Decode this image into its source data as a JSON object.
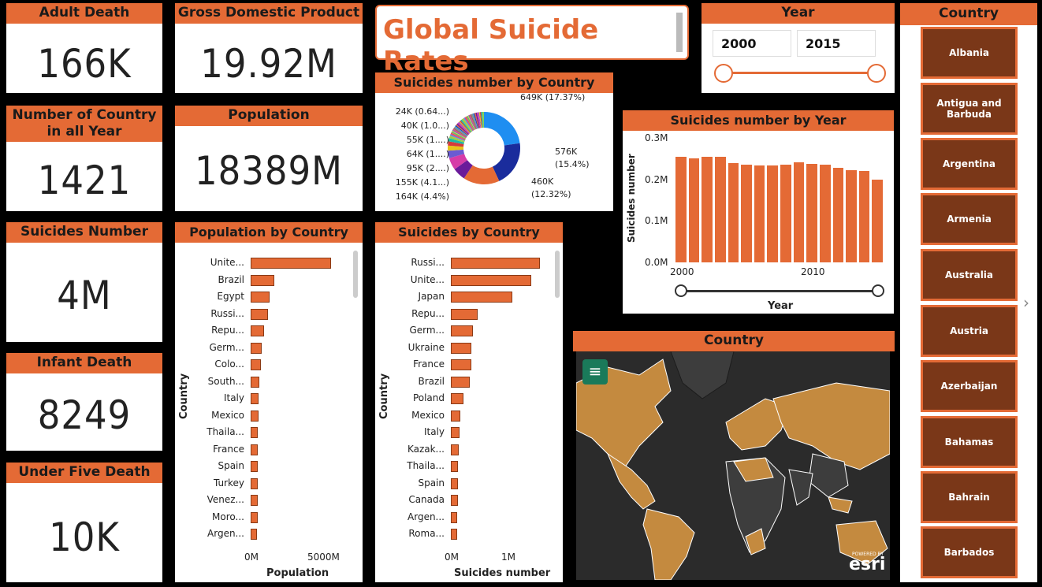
{
  "title": "Global Suicide Rates",
  "kpis": {
    "adult_death": {
      "label": "Adult Death",
      "value": "166K"
    },
    "gdp": {
      "label": "Gross Domestic Product",
      "value": "19.92M"
    },
    "countries": {
      "label": "Number of Country in all Year",
      "value": "1421"
    },
    "population": {
      "label": "Population",
      "value": "18389M"
    },
    "suicides": {
      "label": "Suicides Number",
      "value": "4M"
    },
    "infant_death": {
      "label": "Infant Death",
      "value": "8249"
    },
    "under_five": {
      "label": "Under Five Death",
      "value": "10K"
    }
  },
  "year_slicer": {
    "label": "Year",
    "from": "2000",
    "to": "2015"
  },
  "country_slicer": {
    "label": "Country",
    "items": [
      "Albania",
      "Antigua and Barbuda",
      "Argentina",
      "Armenia",
      "Australia",
      "Austria",
      "Azerbaijan",
      "Bahamas",
      "Bahrain",
      "Barbados"
    ]
  },
  "map": {
    "label": "Country",
    "esri_powered": "POWERED BY",
    "esri": "esri"
  },
  "donut": {
    "title": "Suicides number by Country",
    "labels_left": [
      "24K (0.64...)",
      "40K (1.0...)",
      "55K (1....)",
      "64K (1....)",
      "95K (2....)",
      "155K (4.1...)",
      "164K (4.4%)"
    ],
    "labels_right": [
      "649K (17.37%)",
      "576K",
      "(15.4%)",
      "460K",
      "(12.32%)"
    ]
  },
  "colors": {
    "accent": "#e46a35",
    "dark": "#7a3718"
  },
  "chart_data": [
    {
      "type": "bar",
      "title": "Population by Country",
      "xlabel": "Population",
      "ylabel": "Country",
      "categories": [
        "Unite...",
        "Brazil",
        "Egypt",
        "Russi...",
        "Repu...",
        "Germ...",
        "Colo...",
        "South...",
        "Italy",
        "Mexico",
        "Thaila...",
        "France",
        "Spain",
        "Turkey",
        "Venez...",
        "Moro...",
        "Argen..."
      ],
      "values": [
        4500,
        1300,
        1050,
        950,
        750,
        600,
        550,
        500,
        450,
        450,
        400,
        400,
        400,
        400,
        380,
        380,
        370
      ],
      "x_ticks": [
        "0M",
        "5000M"
      ],
      "xlim": [
        0,
        5500
      ]
    },
    {
      "type": "bar",
      "title": "Suicides by Country",
      "xlabel": "Suicides number",
      "ylabel": "Country",
      "categories": [
        "Russi...",
        "Unite...",
        "Japan",
        "Repu...",
        "Germ...",
        "Ukraine",
        "France",
        "Brazil",
        "Poland",
        "Mexico",
        "Italy",
        "Kazak...",
        "Thaila...",
        "Spain",
        "Canada",
        "Argen...",
        "Roma..."
      ],
      "values": [
        1310000,
        1180000,
        900000,
        390000,
        320000,
        300000,
        300000,
        280000,
        180000,
        140000,
        130000,
        120000,
        110000,
        110000,
        100000,
        90000,
        90000
      ],
      "x_ticks": [
        "0M",
        "1M"
      ],
      "xlim": [
        0,
        1450000
      ]
    },
    {
      "type": "bar",
      "title": "Suicides number by Year",
      "xlabel": "Year",
      "ylabel": "Suicides number",
      "categories": [
        "2000",
        "2001",
        "2002",
        "2003",
        "2004",
        "2005",
        "2006",
        "2007",
        "2008",
        "2009",
        "2010",
        "2011",
        "2012",
        "2013",
        "2014",
        "2015"
      ],
      "values": [
        255000,
        250000,
        255000,
        255000,
        240000,
        235000,
        233000,
        233000,
        235000,
        242000,
        237000,
        235000,
        228000,
        223000,
        221000,
        200000
      ],
      "y_ticks": [
        "0.3M",
        "0.2M",
        "0.1M",
        "0.0M"
      ],
      "x_ticks": [
        "2000",
        "2010"
      ],
      "ylim": [
        0,
        300000
      ]
    },
    {
      "type": "pie",
      "title": "Suicides number by Country",
      "values": [
        649,
        576,
        460,
        164,
        155,
        95,
        64,
        55,
        40,
        24
      ],
      "colors": [
        "#1f8ef1",
        "#1a2c9c",
        "#e46a35",
        "#6a1b9a",
        "#d63ca8",
        "#6b5bd2",
        "#e6c419",
        "#d43b3b",
        "#1cb8a6",
        "#8fd14f"
      ]
    }
  ]
}
